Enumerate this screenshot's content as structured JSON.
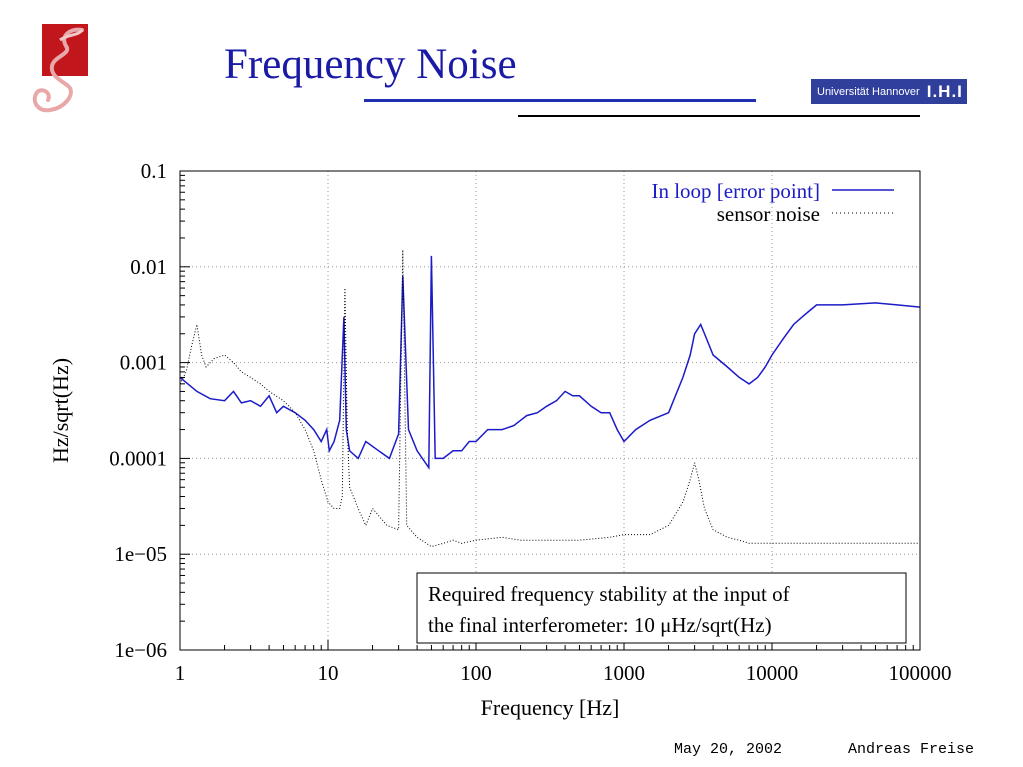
{
  "slide": {
    "title": "Frequency Noise",
    "university_logo_text": "Universität Hannover",
    "university_logo_mark": "I.H.I",
    "footer_date": "May 20, 2002",
    "footer_author": "Andreas Freise"
  },
  "colors": {
    "title": "#1a1aa6",
    "in_loop": "#1b1bc8",
    "sensor_noise": "#000000",
    "logo_bg": "#2f3f9b",
    "logo_red": "#c0161c"
  },
  "chart_data": {
    "type": "line",
    "xscale": "log",
    "yscale": "log",
    "xlim": [
      1,
      100000
    ],
    "ylim": [
      1e-06,
      0.1
    ],
    "xlabel": "Frequency [Hz]",
    "ylabel": "Hz/sqrt(Hz)",
    "xticks": [
      "1",
      "10",
      "100",
      "1000",
      "10000",
      "100000"
    ],
    "yticks": [
      "0.1",
      "0.01",
      "0.001",
      "0.0001",
      "1e−05",
      "1e−06"
    ],
    "grid": true,
    "legend_position": "top-right",
    "annotation": {
      "line1": "Required frequency stability at the input of",
      "line2": "the final interferometer: 10 μHz/sqrt(Hz)"
    },
    "series": [
      {
        "name": "In loop [error point]",
        "style": "solid",
        "x": [
          1,
          1.3,
          1.6,
          2,
          2.3,
          2.6,
          3,
          3.5,
          4,
          4.5,
          5,
          6,
          7,
          8,
          9,
          9.8,
          10.2,
          11,
          12,
          12.8,
          13.3,
          14,
          16,
          18,
          22,
          26,
          30,
          32,
          35,
          40,
          48,
          50,
          53,
          60,
          70,
          80,
          90,
          100,
          120,
          150,
          180,
          200,
          220,
          260,
          300,
          350,
          400,
          450,
          500,
          600,
          700,
          800,
          900,
          1000,
          1200,
          1500,
          2000,
          2500,
          2800,
          3000,
          3300,
          3600,
          4000,
          5000,
          6000,
          7000,
          8000,
          9000,
          10000,
          12000,
          14000,
          16000,
          18000,
          20000,
          30000,
          50000,
          70000,
          100000
        ],
        "y": [
          0.0007,
          0.0005,
          0.00042,
          0.0004,
          0.0005,
          0.00038,
          0.0004,
          0.00035,
          0.00045,
          0.0003,
          0.00035,
          0.0003,
          0.00025,
          0.0002,
          0.00015,
          0.0002,
          0.00012,
          0.00015,
          0.00025,
          0.003,
          0.0002,
          0.00012,
          0.0001,
          0.00015,
          0.00012,
          0.0001,
          0.00018,
          0.008,
          0.0002,
          0.00012,
          8e-05,
          0.013,
          0.0001,
          0.0001,
          0.00012,
          0.00012,
          0.00015,
          0.00015,
          0.0002,
          0.0002,
          0.00022,
          0.00025,
          0.00028,
          0.0003,
          0.00035,
          0.0004,
          0.0005,
          0.00045,
          0.00045,
          0.00035,
          0.0003,
          0.0003,
          0.0002,
          0.00015,
          0.0002,
          0.00025,
          0.0003,
          0.0007,
          0.0012,
          0.002,
          0.0025,
          0.0018,
          0.0012,
          0.0009,
          0.0007,
          0.0006,
          0.0007,
          0.0009,
          0.0012,
          0.0018,
          0.0025,
          0.003,
          0.0035,
          0.004,
          0.004,
          0.0042,
          0.004,
          0.0038
        ]
      },
      {
        "name": "sensor noise",
        "style": "dotted",
        "x": [
          1,
          1.1,
          1.2,
          1.3,
          1.4,
          1.5,
          1.7,
          2,
          2.3,
          2.6,
          3,
          3.5,
          4,
          5,
          6,
          7,
          8,
          9,
          10,
          11,
          12,
          12.5,
          13,
          13.5,
          14,
          16,
          18,
          20,
          25,
          30,
          32,
          34,
          40,
          50,
          60,
          70,
          80,
          100,
          150,
          200,
          300,
          500,
          800,
          1000,
          1500,
          2000,
          2500,
          2800,
          3000,
          3200,
          3500,
          4000,
          5000,
          6000,
          7000,
          8000,
          10000,
          20000,
          50000,
          100000
        ],
        "y": [
          0.0006,
          0.0008,
          0.0015,
          0.0025,
          0.0012,
          0.0009,
          0.0011,
          0.0012,
          0.001,
          0.0008,
          0.0007,
          0.0006,
          0.0005,
          0.0004,
          0.0003,
          0.0002,
          0.00012,
          6e-05,
          3.5e-05,
          3e-05,
          3e-05,
          4e-05,
          0.006,
          0.0002,
          5e-05,
          3e-05,
          2e-05,
          3e-05,
          2e-05,
          1.8e-05,
          0.015,
          2e-05,
          1.5e-05,
          1.2e-05,
          1.3e-05,
          1.4e-05,
          1.3e-05,
          1.4e-05,
          1.5e-05,
          1.4e-05,
          1.4e-05,
          1.4e-05,
          1.5e-05,
          1.6e-05,
          1.6e-05,
          2e-05,
          3.5e-05,
          6e-05,
          9e-05,
          6e-05,
          3e-05,
          1.8e-05,
          1.5e-05,
          1.4e-05,
          1.3e-05,
          1.3e-05,
          1.3e-05,
          1.3e-05,
          1.3e-05,
          1.3e-05
        ]
      }
    ]
  }
}
